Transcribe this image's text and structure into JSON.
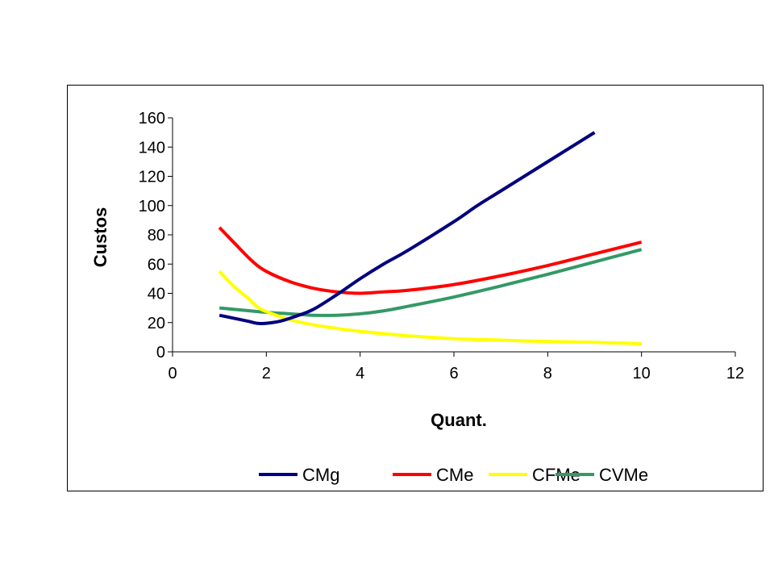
{
  "chart_data": {
    "type": "line",
    "title": "",
    "xlabel": "Quant.",
    "ylabel": "Custos",
    "xlim": [
      0,
      12
    ],
    "ylim": [
      0,
      160
    ],
    "xticks": [
      0,
      2,
      4,
      6,
      8,
      10,
      12
    ],
    "yticks": [
      0,
      20,
      40,
      60,
      80,
      100,
      120,
      140,
      160
    ],
    "grid": false,
    "legend_position": "bottom",
    "series": [
      {
        "name": "CMg",
        "color": "#000080",
        "x": [
          1,
          1.3,
          1.6,
          1.8,
          2,
          2.3,
          2.6,
          3,
          3.5,
          4,
          4.5,
          5,
          6,
          6.5,
          7,
          8,
          9
        ],
        "y": [
          25,
          23,
          21,
          19.5,
          19.5,
          21,
          24,
          29,
          39,
          50,
          60,
          69,
          89,
          100,
          110,
          130,
          150
        ]
      },
      {
        "name": "CMe",
        "color": "#FF0000",
        "x": [
          1,
          1.3,
          1.7,
          2,
          2.5,
          3,
          3.5,
          4,
          4.5,
          5,
          6,
          7,
          8,
          9,
          10
        ],
        "y": [
          85,
          75,
          62,
          55,
          48,
          43.5,
          41,
          40,
          41,
          42,
          46,
          52,
          59,
          67,
          75
        ]
      },
      {
        "name": "CFMe",
        "color": "#FFFF00",
        "x": [
          1,
          1.3,
          1.6,
          1.8,
          2,
          2.5,
          3,
          3.5,
          4,
          5,
          6,
          7,
          8,
          9,
          10
        ],
        "y": [
          55,
          45,
          37,
          31,
          27.5,
          22,
          18.5,
          16,
          14,
          11,
          9,
          8,
          7,
          6.5,
          5.5
        ]
      },
      {
        "name": "CVMe",
        "color": "#339966",
        "x": [
          1,
          1.5,
          2,
          2.5,
          3,
          3.5,
          4,
          4.5,
          5,
          6,
          7,
          8,
          9,
          10
        ],
        "y": [
          30,
          28.5,
          27,
          26,
          25,
          25,
          26,
          28,
          31,
          37.5,
          45,
          53,
          61.5,
          70
        ]
      }
    ]
  }
}
